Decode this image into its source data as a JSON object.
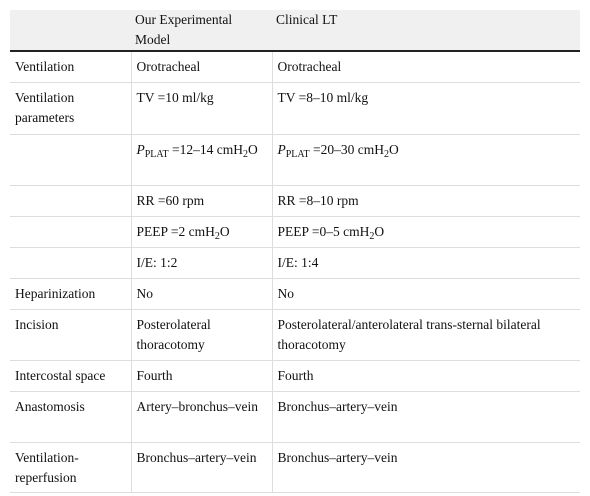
{
  "table": {
    "columns": [
      "Our Experimental Model",
      "Clinical LT"
    ],
    "rows": [
      [
        "Ventilation",
        "Orotracheal",
        "Orotracheal"
      ],
      [
        "Ventilation parameters",
        "TV =10 ml/kg",
        "TV =8–10 ml/kg"
      ],
      [
        null,
        [
          {
            "italic": "P"
          },
          {
            "sub": "PLAT"
          },
          " =12–14 cmH",
          {
            "sub": "2"
          },
          "O"
        ],
        [
          {
            "italic": "P"
          },
          {
            "sub": "PLAT"
          },
          " =20–30 cmH",
          {
            "sub": "2"
          },
          "O"
        ]
      ],
      [
        null,
        "RR =60 rpm",
        "RR =8–10 rpm"
      ],
      [
        null,
        [
          "PEEP =2 cmH",
          {
            "sub": "2"
          },
          "O"
        ],
        [
          "PEEP =0–5 cmH",
          {
            "sub": "2"
          },
          "O"
        ]
      ],
      [
        null,
        "I/E: 1:2",
        "I/E: 1:4"
      ],
      [
        "Heparinization",
        "No",
        "No"
      ],
      [
        "Incision",
        "Posterolateral thoracotomy",
        "Posterolateral/anterolateral trans-sternal bilateral thoracotomy"
      ],
      [
        "Intercostal space",
        "Fourth",
        "Fourth"
      ],
      [
        "Anastomosis",
        "Artery–bronchus–vein",
        "Bronchus–artery–vein"
      ],
      [
        "Ventilation-reperfusion",
        "Bronchus–artery–vein",
        "Bronchus–artery–vein"
      ]
    ]
  }
}
